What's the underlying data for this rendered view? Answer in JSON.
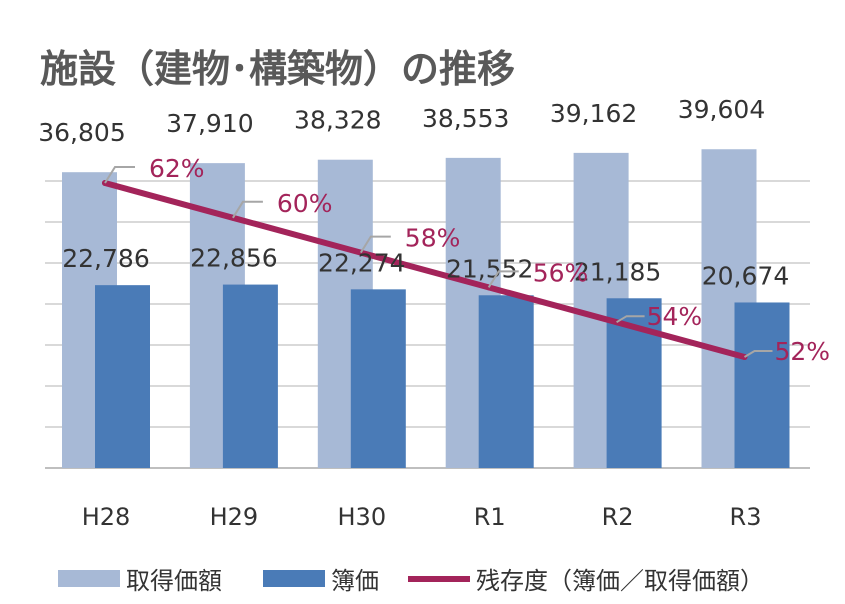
{
  "chart_data": {
    "type": "bar",
    "title": "施設（建物･構築物）の推移",
    "categories": [
      "H28",
      "H29",
      "H30",
      "R1",
      "R2",
      "R3"
    ],
    "series": [
      {
        "name": "取得価額",
        "type": "bar",
        "color": "#a7b9d6",
        "values": [
          36805,
          37910,
          38328,
          38553,
          39162,
          39604
        ],
        "labels": [
          "36,805",
          "37,910",
          "38,328",
          "38,553",
          "39,162",
          "39,604"
        ]
      },
      {
        "name": "簿価",
        "type": "bar",
        "color": "#4a7bb7",
        "values": [
          22786,
          22856,
          22274,
          21552,
          21185,
          20674
        ],
        "labels": [
          "22,786",
          "22,856",
          "22,274",
          "21,552",
          "21,185",
          "20,674"
        ]
      },
      {
        "name": "残存度（簿価／取得価額）",
        "type": "line",
        "axis": "secondary",
        "color": "#a3245a",
        "values": [
          62,
          60,
          58,
          56,
          54,
          52
        ],
        "labels": [
          "62%",
          "60%",
          "58%",
          "56%",
          "54%",
          "52%"
        ]
      }
    ],
    "ylim": [
      0,
      40000
    ],
    "y2lim_unit": "%",
    "grid": true,
    "legend": "bottom"
  }
}
